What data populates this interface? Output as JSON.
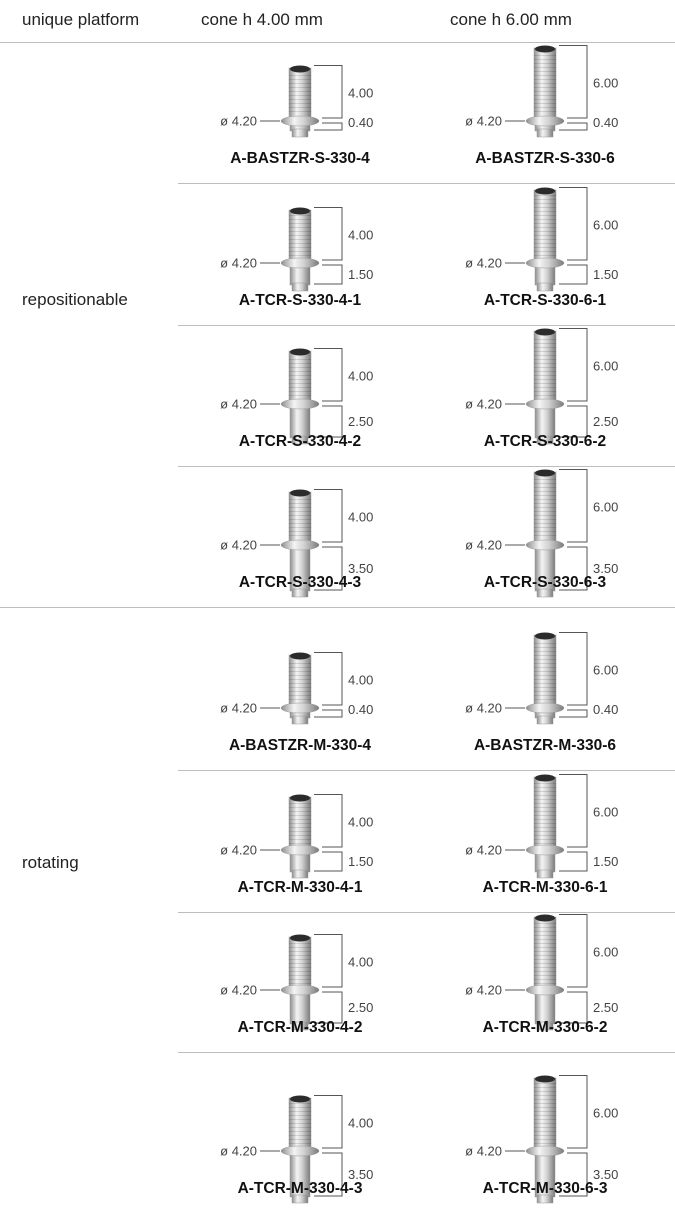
{
  "header": {
    "columns": [
      "unique platform",
      "cone h 4.00 mm",
      "cone h 6.00 mm"
    ]
  },
  "groups": [
    {
      "label": "repositionable",
      "rows": [
        {
          "cells": [
            {
              "diameter": "ø 4.20",
              "cone": "4.00",
              "collar": "0.40",
              "code": "A-BASTZR-S-330-4"
            },
            {
              "diameter": "ø 4.20",
              "cone": "6.00",
              "collar": "0.40",
              "code": "A-BASTZR-S-330-6"
            }
          ]
        },
        {
          "cells": [
            {
              "diameter": "ø 4.20",
              "cone": "4.00",
              "collar": "1.50",
              "code": "A-TCR-S-330-4-1"
            },
            {
              "diameter": "ø 4.20",
              "cone": "6.00",
              "collar": "1.50",
              "code": "A-TCR-S-330-6-1"
            }
          ]
        },
        {
          "cells": [
            {
              "diameter": "ø 4.20",
              "cone": "4.00",
              "collar": "2.50",
              "code": "A-TCR-S-330-4-2"
            },
            {
              "diameter": "ø 4.20",
              "cone": "6.00",
              "collar": "2.50",
              "code": "A-TCR-S-330-6-2"
            }
          ]
        },
        {
          "cells": [
            {
              "diameter": "ø 4.20",
              "cone": "4.00",
              "collar": "3.50",
              "code": "A-TCR-S-330-4-3"
            },
            {
              "diameter": "ø 4.20",
              "cone": "6.00",
              "collar": "3.50",
              "code": "A-TCR-S-330-6-3"
            }
          ]
        }
      ]
    },
    {
      "label": "rotating",
      "rows": [
        {
          "cells": [
            {
              "diameter": "ø 4.20",
              "cone": "4.00",
              "collar": "0.40",
              "code": "A-BASTZR-M-330-4"
            },
            {
              "diameter": "ø 4.20",
              "cone": "6.00",
              "collar": "0.40",
              "code": "A-BASTZR-M-330-6"
            }
          ]
        },
        {
          "cells": [
            {
              "diameter": "ø 4.20",
              "cone": "4.00",
              "collar": "1.50",
              "code": "A-TCR-M-330-4-1"
            },
            {
              "diameter": "ø 4.20",
              "cone": "6.00",
              "collar": "1.50",
              "code": "A-TCR-M-330-6-1"
            }
          ]
        },
        {
          "cells": [
            {
              "diameter": "ø 4.20",
              "cone": "4.00",
              "collar": "2.50",
              "code": "A-TCR-M-330-4-2"
            },
            {
              "diameter": "ø 4.20",
              "cone": "6.00",
              "collar": "2.50",
              "code": "A-TCR-M-330-6-2"
            }
          ]
        },
        {
          "cells": [
            {
              "diameter": "ø 4.20",
              "cone": "4.00",
              "collar": "3.50",
              "code": "A-TCR-M-330-4-3"
            },
            {
              "diameter": "ø 4.20",
              "cone": "6.00",
              "collar": "3.50",
              "code": "A-TCR-M-330-6-3"
            }
          ]
        }
      ]
    }
  ]
}
